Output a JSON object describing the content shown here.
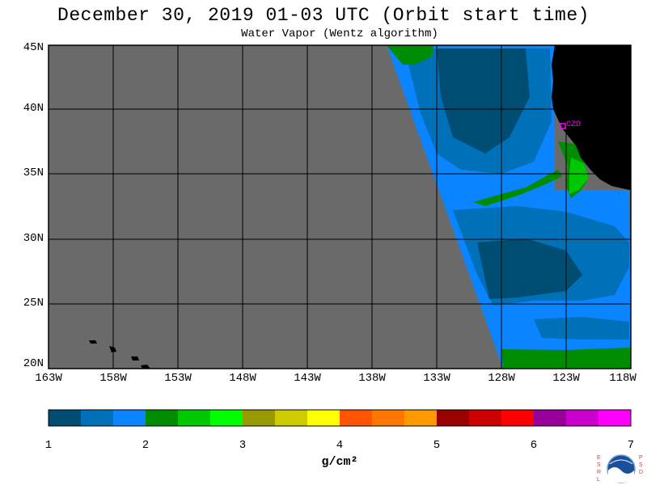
{
  "header": {
    "title": "December 30, 2019  01-03 UTC  (Orbit start time)",
    "subtitle": "Water Vapor (Wentz algorithm)"
  },
  "map": {
    "lat_labels": [
      "45N",
      "40N",
      "35N",
      "30N",
      "25N",
      "20N"
    ],
    "lon_labels": [
      "163W",
      "158W",
      "153W",
      "148W",
      "143W",
      "138W",
      "133W",
      "128W",
      "123W",
      "118W"
    ],
    "station_label": "CZD",
    "colors": {
      "no_data": "#6a6a6a",
      "land": "#000000",
      "station": "#ff00ff"
    }
  },
  "colorbar": {
    "tick_labels": [
      "1",
      "2",
      "3",
      "4",
      "5",
      "6",
      "7"
    ],
    "unit_label": "g/cm²",
    "bins": [
      "#004d73",
      "#0070b8",
      "#0a84ff",
      "#008c00",
      "#00c800",
      "#00ff00",
      "#999900",
      "#cccc00",
      "#ffff00",
      "#ff5500",
      "#ff7700",
      "#ff9900",
      "#990000",
      "#cc0000",
      "#ff0000",
      "#990099",
      "#cc00cc",
      "#ff00ff"
    ]
  },
  "logo": {
    "left_letters": "ESRL",
    "right_letters": "PSD"
  }
}
